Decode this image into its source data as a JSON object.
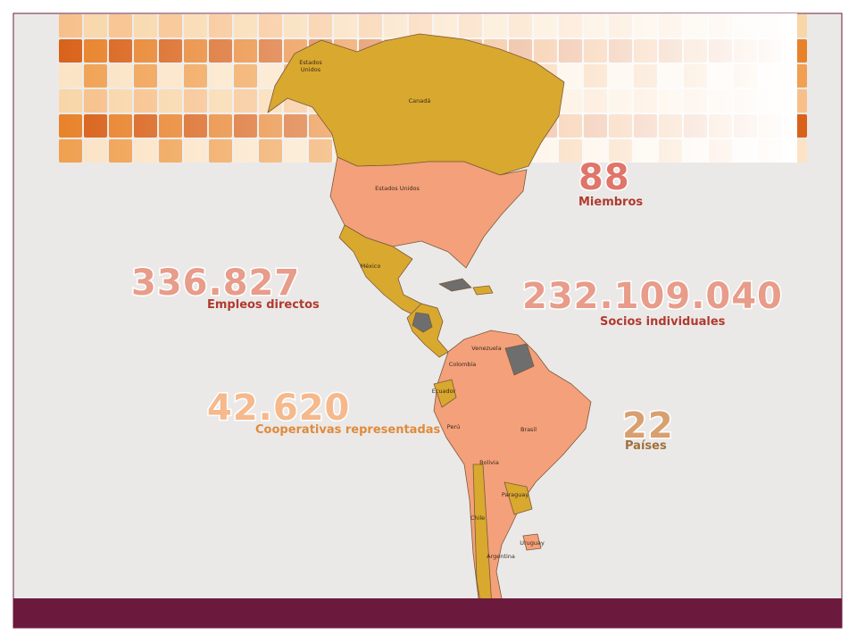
{
  "stats": [
    {
      "value": "88",
      "label": "Miembros"
    },
    {
      "value": "336.827",
      "label": "Empleos directos"
    },
    {
      "value": "232.109.040",
      "label": "Socios individuales"
    },
    {
      "value": "42.620",
      "label": "Cooperativas representadas"
    },
    {
      "value": "22",
      "label": "Países"
    }
  ],
  "map_labels": [
    "Estados",
    "Unidos",
    "Canadá",
    "Estados Unidos",
    "México",
    "Venezuela",
    "Colombia",
    "Ecuador",
    "Perú",
    "Brasil",
    "Bolivia",
    "Paraguay",
    "Chile",
    "Argentina",
    "Uruguay"
  ]
}
